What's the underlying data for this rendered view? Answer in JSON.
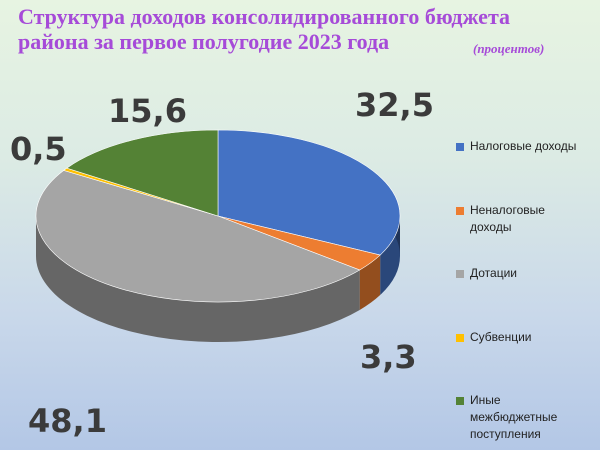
{
  "title": {
    "line1": "Структура доходов консолидированного  бюджета",
    "line2": "района за первое полугодие 2023 года",
    "units": "(процентов)"
  },
  "chart_data": {
    "type": "pie",
    "title": "Структура доходов консолидированного  бюджета района за первое полугодие 2023 года",
    "units": "(процентов)",
    "style": "3d",
    "legend_position": "right",
    "categories": [
      "Налоговые доходы",
      "Неналоговые доходы",
      "Дотации",
      "Субвенции",
      "Иные межбюджетные поступления"
    ],
    "values": [
      32.5,
      3.3,
      48.1,
      0.5,
      15.6
    ],
    "labels": [
      "32,5",
      "3,3",
      "48,1",
      "0,5",
      "15,6"
    ],
    "colors": [
      "#4472c4",
      "#ed7d31",
      "#a5a5a5",
      "#ffc000",
      "#548235"
    ]
  },
  "legend": [
    {
      "label": "Налоговые доходы",
      "color": "#4472c4"
    },
    {
      "label": "Неналоговые доходы",
      "color": "#ed7d31"
    },
    {
      "label": "Дотации",
      "color": "#a5a5a5"
    },
    {
      "label": "Субвенции",
      "color": "#ffc000"
    },
    {
      "label": "Иные межбюджетные поступления",
      "color": "#548235"
    }
  ]
}
